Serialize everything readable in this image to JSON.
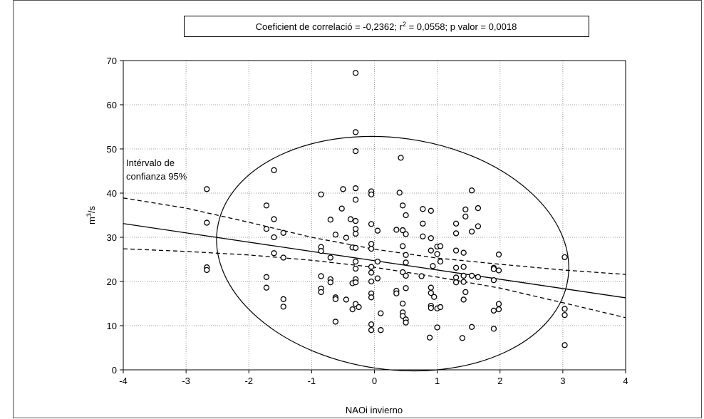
{
  "chart_data": {
    "type": "scatter",
    "title_parts": [
      "Coeficient de correlació = -0,2362; r",
      "2",
      " = 0,0558; p valor = 0,0018"
    ],
    "x_label": "NAOi invierno",
    "y_label_parts": [
      "m",
      "3",
      "/s"
    ],
    "annotation": [
      "Intérvalo de",
      "confianza 95%"
    ],
    "xlim": [
      -4,
      4
    ],
    "xticks": [
      -4,
      -3,
      -2,
      -1,
      0,
      1,
      2,
      3,
      4
    ],
    "ylim": [
      0,
      70
    ],
    "yticks": [
      0,
      10,
      20,
      30,
      40,
      50,
      60,
      70
    ],
    "grid": true,
    "x": [
      -2.67,
      -2.67,
      -2.67,
      -2.67,
      -1.6,
      -1.6,
      -1.6,
      -1.6,
      -1.72,
      -1.72,
      -1.72,
      -1.72,
      -1.45,
      -1.45,
      -1.45,
      -1.45,
      -0.85,
      -0.85,
      -0.85,
      -0.85,
      -0.85,
      -0.85,
      -0.7,
      -0.7,
      -0.7,
      -0.7,
      -0.62,
      -0.62,
      -0.62,
      -0.62,
      -0.52,
      -0.5,
      -0.45,
      -0.45,
      -0.38,
      -0.35,
      -0.35,
      -0.35,
      -0.3,
      -0.3,
      -0.3,
      -0.3,
      -0.3,
      -0.3,
      -0.3,
      -0.3,
      -0.3,
      -0.3,
      -0.3,
      -0.3,
      -0.3,
      -0.3,
      -0.25,
      -0.05,
      -0.05,
      -0.05,
      -0.05,
      -0.05,
      -0.05,
      -0.05,
      -0.05,
      -0.05,
      -0.05,
      -0.05,
      -0.05,
      0.05,
      0.05,
      0.05,
      0.1,
      0.1,
      0.4,
      0.42,
      0.45,
      0.35,
      0.45,
      0.5,
      0.5,
      0.45,
      0.5,
      0.5,
      0.45,
      0.5,
      0.5,
      0.35,
      0.35,
      0.45,
      0.45,
      0.45,
      0.5,
      0.5,
      0.77,
      0.77,
      0.77,
      0.75,
      0.9,
      0.9,
      0.9,
      0.93,
      0.9,
      0.9,
      0.9,
      0.9,
      0.88,
      0.95,
      1.0,
      1.0,
      1.0,
      1.0,
      1.05,
      1.05,
      1.05,
      1.3,
      1.3,
      1.3,
      1.3,
      1.3,
      1.3,
      1.45,
      1.45,
      1.42,
      1.42,
      1.42,
      1.42,
      1.45,
      1.42,
      1.4,
      1.55,
      1.55,
      1.55,
      1.55,
      1.65,
      1.65,
      1.65,
      1.9,
      1.9,
      1.9,
      1.9,
      1.9,
      1.98,
      1.98,
      1.98,
      1.98,
      3.03,
      3.03,
      3.03,
      3.03
    ],
    "values": [
      40.9,
      33.3,
      23.2,
      22.6,
      45.2,
      34.1,
      30.0,
      26.4,
      37.2,
      31.9,
      21.0,
      18.6,
      31.0,
      25.4,
      16.0,
      14.3,
      39.7,
      27.8,
      26.9,
      21.2,
      18.4,
      17.6,
      34.0,
      25.4,
      20.5,
      19.8,
      30.6,
      16.4,
      16.0,
      10.9,
      36.5,
      40.9,
      29.9,
      15.9,
      34.1,
      27.7,
      19.6,
      13.7,
      67.2,
      53.8,
      49.5,
      41.1,
      38.5,
      33.7,
      31.9,
      30.8,
      27.6,
      24.5,
      22.9,
      20.5,
      19.8,
      14.9,
      14.2,
      40.4,
      39.7,
      33.0,
      28.5,
      27.4,
      23.3,
      22.0,
      20.0,
      17.3,
      16.4,
      10.3,
      9.0,
      31.5,
      24.5,
      20.7,
      12.8,
      9.0,
      40.1,
      48.0,
      37.2,
      31.7,
      31.6,
      30.7,
      35.0,
      28.0,
      26.0,
      24.3,
      22.1,
      21.3,
      18.5,
      17.9,
      17.3,
      15.0,
      13.0,
      12.2,
      11.4,
      10.7,
      36.4,
      33.1,
      30.2,
      21.2,
      36.0,
      27.0,
      29.8,
      23.5,
      18.6,
      17.4,
      14.5,
      14.0,
      7.3,
      16.5,
      27.9,
      26.2,
      13.9,
      9.6,
      28.0,
      24.5,
      14.2,
      33.1,
      30.9,
      27.0,
      23.1,
      20.9,
      19.8,
      36.3,
      34.7,
      26.5,
      23.3,
      21.3,
      19.9,
      17.6,
      15.9,
      7.2,
      40.6,
      31.3,
      21.3,
      9.7,
      36.6,
      32.5,
      21.0,
      23.1,
      22.8,
      20.3,
      13.4,
      9.3,
      26.1,
      22.5,
      14.9,
      13.7,
      25.5,
      13.8,
      12.4,
      5.6
    ],
    "fit": {
      "x": [
        -4,
        4
      ],
      "values": [
        33.1,
        16.3
      ]
    },
    "confidence_upper": {
      "x": [
        -4,
        -3,
        -2,
        -1,
        0,
        1,
        2,
        3,
        4
      ],
      "values": [
        38.9,
        36.6,
        33.4,
        30.0,
        27.3,
        25.3,
        23.9,
        22.6,
        21.6
      ]
    },
    "confidence_lower": {
      "x": [
        -4,
        -3,
        -2,
        -1,
        0,
        1,
        2,
        3,
        4
      ],
      "values": [
        27.4,
        26.8,
        26.0,
        24.8,
        23.2,
        21.0,
        18.5,
        15.2,
        11.8
      ]
    },
    "ellipse": {
      "cx": 0.29,
      "cy": 26.3,
      "rx": 2.82,
      "ry": 26.2,
      "rotation": 8
    }
  }
}
